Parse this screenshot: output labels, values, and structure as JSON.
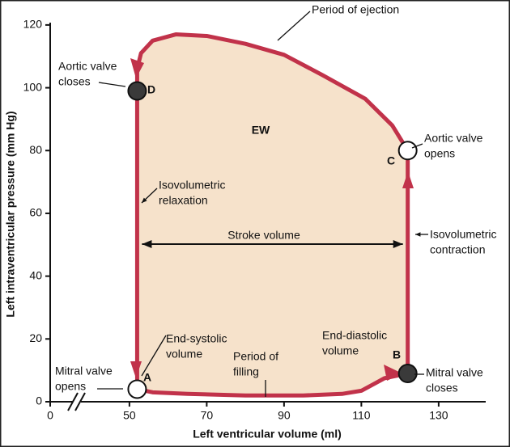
{
  "chart_data": {
    "type": "line",
    "x_label": "Left ventricular volume (ml)",
    "y_label": "Left intraventricular pressure (mm Hg)",
    "xlim": [
      0,
      142
    ],
    "x_break": [
      0,
      45
    ],
    "xticks": [
      0,
      50,
      70,
      90,
      110,
      130
    ],
    "ylim": [
      0,
      121
    ],
    "yticks": [
      0,
      20,
      40,
      60,
      80,
      100,
      120
    ],
    "color": "#c1324a",
    "fill_color": "#f6e2cb",
    "x": [
      52,
      56,
      65,
      80,
      95,
      105,
      110,
      113,
      116,
      122,
      122,
      118,
      111,
      100,
      90,
      80,
      70,
      62,
      56,
      53,
      52,
      52
    ],
    "values": [
      4,
      3,
      2.5,
      2,
      2,
      2.5,
      3.5,
      5.5,
      7.5,
      9,
      80,
      88,
      96.5,
      104,
      110.5,
      114,
      116.5,
      117,
      115,
      111,
      106,
      99
    ],
    "points": [
      {
        "label": "A",
        "x": 52,
        "y": 4,
        "filled": false
      },
      {
        "label": "B",
        "x": 122,
        "y": 9,
        "filled": true
      },
      {
        "label": "C",
        "x": 122,
        "y": 80,
        "filled": false
      },
      {
        "label": "D",
        "x": 52,
        "y": 99,
        "filled": true
      }
    ],
    "point_fill": "#3a3a3a",
    "annotations": [
      {
        "lines": [
          "Period of ejection"
        ]
      },
      {
        "lines": [
          "Aortic valve",
          "closes"
        ]
      },
      {
        "lines": [
          "EW"
        ]
      },
      {
        "lines": [
          "Aortic valve",
          "opens"
        ]
      },
      {
        "lines": [
          "Isovolumetric",
          "relaxation"
        ]
      },
      {
        "lines": [
          "Stroke volume"
        ]
      },
      {
        "lines": [
          "Isovolumetric",
          "contraction"
        ]
      },
      {
        "lines": [
          "End-systolic",
          "volume"
        ]
      },
      {
        "lines": [
          "End-diastolic",
          "volume"
        ]
      },
      {
        "lines": [
          "Mitral valve",
          "opens"
        ]
      },
      {
        "lines": [
          "Period of",
          "filling"
        ]
      },
      {
        "lines": [
          "Mitral valve",
          "closes"
        ]
      }
    ]
  }
}
